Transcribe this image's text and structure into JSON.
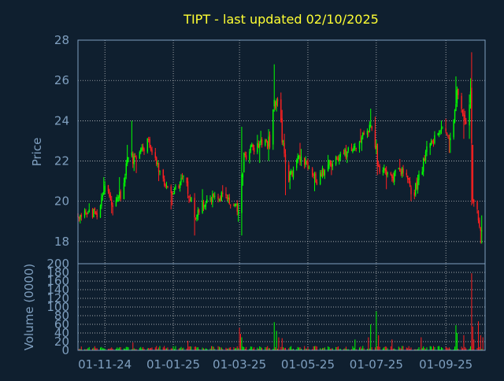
{
  "colors": {
    "background": "#0f1f2f",
    "title": "#ffff33",
    "axis_text": "#7f9fbf",
    "frame": "#7f9fbf",
    "grid": "#d8d8d8",
    "up": "#00ff00",
    "down": "#ff2020"
  },
  "chart_data": [
    {
      "type": "candlestick",
      "title": "TIPT - last updated 02/10/2025",
      "ylabel": "Price",
      "ylim": [
        16.9,
        28.0
      ],
      "yticks": [
        18,
        20,
        22,
        24,
        26,
        28
      ],
      "grid": true,
      "x_range": [
        "2024-10-08",
        "2025-10-06"
      ],
      "segments": [
        {
          "from": "2024-10-08",
          "to": "2024-10-25",
          "open": 19.4,
          "close": 19.4,
          "lo": 18.9,
          "hi": 19.9
        },
        {
          "from": "2024-10-25",
          "to": "2024-11-01",
          "open": 19.4,
          "close": 20.9,
          "lo": 19.1,
          "hi": 21.2
        },
        {
          "from": "2024-11-01",
          "to": "2024-11-08",
          "open": 20.9,
          "close": 19.7,
          "lo": 19.4,
          "hi": 21.0
        },
        {
          "from": "2024-11-08",
          "to": "2024-11-15",
          "open": 19.7,
          "close": 20.4,
          "lo": 19.3,
          "hi": 21.2
        },
        {
          "from": "2024-11-15",
          "to": "2024-11-22",
          "open": 20.4,
          "close": 22.3,
          "lo": 20.0,
          "hi": 22.8
        },
        {
          "from": "2024-11-22",
          "to": "2024-11-29",
          "open": 22.3,
          "close": 22.0,
          "lo": 21.5,
          "hi": 24.0
        },
        {
          "from": "2024-11-29",
          "to": "2024-12-10",
          "open": 22.0,
          "close": 23.0,
          "lo": 21.4,
          "hi": 23.1
        },
        {
          "from": "2024-12-10",
          "to": "2024-12-20",
          "open": 23.0,
          "close": 21.3,
          "lo": 21.0,
          "hi": 23.2
        },
        {
          "from": "2024-12-20",
          "to": "2024-12-31",
          "open": 21.3,
          "close": 20.3,
          "lo": 19.6,
          "hi": 21.6
        },
        {
          "from": "2024-12-31",
          "to": "2025-01-10",
          "open": 20.3,
          "close": 21.1,
          "lo": 19.8,
          "hi": 21.4
        },
        {
          "from": "2025-01-10",
          "to": "2025-01-21",
          "open": 21.1,
          "close": 19.3,
          "lo": 18.3,
          "hi": 21.3
        },
        {
          "from": "2025-01-21",
          "to": "2025-01-31",
          "open": 19.3,
          "close": 20.2,
          "lo": 19.0,
          "hi": 20.6
        },
        {
          "from": "2025-01-31",
          "to": "2025-02-15",
          "open": 20.2,
          "close": 20.3,
          "lo": 19.7,
          "hi": 20.8
        },
        {
          "from": "2025-02-15",
          "to": "2025-02-28",
          "open": 20.3,
          "close": 19.6,
          "lo": 19.3,
          "hi": 20.7
        },
        {
          "from": "2025-02-28",
          "to": "2025-03-05",
          "open": 19.6,
          "close": 22.2,
          "lo": 18.3,
          "hi": 23.7
        },
        {
          "from": "2025-03-05",
          "to": "2025-03-18",
          "open": 22.2,
          "close": 22.9,
          "lo": 21.8,
          "hi": 23.3
        },
        {
          "from": "2025-03-18",
          "to": "2025-03-27",
          "open": 22.9,
          "close": 22.8,
          "lo": 21.9,
          "hi": 23.5
        },
        {
          "from": "2025-03-27",
          "to": "2025-04-03",
          "open": 22.8,
          "close": 25.2,
          "lo": 22.0,
          "hi": 26.8
        },
        {
          "from": "2025-04-03",
          "to": "2025-04-14",
          "open": 25.2,
          "close": 21.2,
          "lo": 20.3,
          "hi": 25.4
        },
        {
          "from": "2025-04-14",
          "to": "2025-04-25",
          "open": 21.2,
          "close": 22.3,
          "lo": 20.6,
          "hi": 22.9
        },
        {
          "from": "2025-04-25",
          "to": "2025-05-08",
          "open": 22.3,
          "close": 21.0,
          "lo": 20.5,
          "hi": 22.6
        },
        {
          "from": "2025-05-08",
          "to": "2025-05-20",
          "open": 21.0,
          "close": 21.8,
          "lo": 20.8,
          "hi": 22.3
        },
        {
          "from": "2025-05-20",
          "to": "2025-06-05",
          "open": 21.8,
          "close": 22.4,
          "lo": 21.3,
          "hi": 22.8
        },
        {
          "from": "2025-06-05",
          "to": "2025-06-18",
          "open": 22.4,
          "close": 23.1,
          "lo": 21.9,
          "hi": 23.6
        },
        {
          "from": "2025-06-18",
          "to": "2025-06-28",
          "open": 23.1,
          "close": 23.9,
          "lo": 22.5,
          "hi": 24.6
        },
        {
          "from": "2025-06-28",
          "to": "2025-07-03",
          "open": 23.9,
          "close": 21.6,
          "lo": 21.3,
          "hi": 24.2
        },
        {
          "from": "2025-07-03",
          "to": "2025-07-15",
          "open": 21.6,
          "close": 21.2,
          "lo": 20.6,
          "hi": 22.0
        },
        {
          "from": "2025-07-15",
          "to": "2025-07-25",
          "open": 21.2,
          "close": 21.6,
          "lo": 20.8,
          "hi": 22.1
        },
        {
          "from": "2025-07-25",
          "to": "2025-08-03",
          "open": 21.6,
          "close": 20.3,
          "lo": 20.0,
          "hi": 21.8
        },
        {
          "from": "2025-08-03",
          "to": "2025-08-16",
          "open": 20.3,
          "close": 22.6,
          "lo": 20.1,
          "hi": 23.0
        },
        {
          "from": "2025-08-16",
          "to": "2025-08-29",
          "open": 22.6,
          "close": 23.6,
          "lo": 22.3,
          "hi": 24.0
        },
        {
          "from": "2025-08-29",
          "to": "2025-09-05",
          "open": 23.6,
          "close": 22.8,
          "lo": 22.4,
          "hi": 24.1
        },
        {
          "from": "2025-09-05",
          "to": "2025-09-11",
          "open": 22.8,
          "close": 25.3,
          "lo": 22.4,
          "hi": 26.2
        },
        {
          "from": "2025-09-11",
          "to": "2025-09-18",
          "open": 25.3,
          "close": 23.8,
          "lo": 23.1,
          "hi": 25.7
        },
        {
          "from": "2025-09-18",
          "to": "2025-09-23",
          "open": 23.8,
          "close": 24.9,
          "lo": 23.1,
          "hi": 25.3
        },
        {
          "from": "2025-09-23",
          "to": "2025-09-25",
          "open": 24.9,
          "close": 20.3,
          "lo": 19.8,
          "hi": 27.4
        },
        {
          "from": "2025-09-25",
          "to": "2025-10-03",
          "open": 20.3,
          "close": 18.5,
          "lo": 17.9,
          "hi": 20.5
        },
        {
          "from": "2025-10-03",
          "to": "2025-10-06",
          "open": 18.5,
          "close": 18.2,
          "lo": 17.9,
          "hi": 19.3
        }
      ]
    },
    {
      "type": "bar",
      "ylabel": "Volume (0000)",
      "ylim": [
        0,
        200
      ],
      "yticks": [
        0,
        20,
        40,
        60,
        80,
        100,
        120,
        140,
        160,
        180,
        200
      ],
      "grid": true,
      "x_range": [
        "2024-10-08",
        "2025-10-06"
      ],
      "xticks": [
        "01-11-24",
        "01-01-25",
        "01-03-25",
        "01-05-25",
        "01-07-25",
        "01-09-25"
      ],
      "typical_range": [
        2,
        10
      ],
      "high_volume_bars": [
        {
          "date": "2024-11-26",
          "value": 18
        },
        {
          "date": "2025-01-14",
          "value": 22
        },
        {
          "date": "2025-03-01",
          "value": 52
        },
        {
          "date": "2025-03-02",
          "value": 38
        },
        {
          "date": "2025-03-03",
          "value": 30
        },
        {
          "date": "2025-04-01",
          "value": 65
        },
        {
          "date": "2025-04-03",
          "value": 45
        },
        {
          "date": "2025-04-05",
          "value": 30
        },
        {
          "date": "2025-04-08",
          "value": 28
        },
        {
          "date": "2025-06-12",
          "value": 25
        },
        {
          "date": "2025-06-24",
          "value": 30
        },
        {
          "date": "2025-06-26",
          "value": 60
        },
        {
          "date": "2025-07-01",
          "value": 90
        },
        {
          "date": "2025-07-03",
          "value": 35
        },
        {
          "date": "2025-07-15",
          "value": 25
        },
        {
          "date": "2025-08-10",
          "value": 30
        },
        {
          "date": "2025-09-10",
          "value": 58
        },
        {
          "date": "2025-09-11",
          "value": 40
        },
        {
          "date": "2025-09-17",
          "value": 35
        },
        {
          "date": "2025-09-24",
          "value": 178
        },
        {
          "date": "2025-09-25",
          "value": 55
        },
        {
          "date": "2025-09-26",
          "value": 25
        },
        {
          "date": "2025-09-30",
          "value": 67
        },
        {
          "date": "2025-10-02",
          "value": 35
        },
        {
          "date": "2025-10-04",
          "value": 30
        }
      ]
    }
  ]
}
